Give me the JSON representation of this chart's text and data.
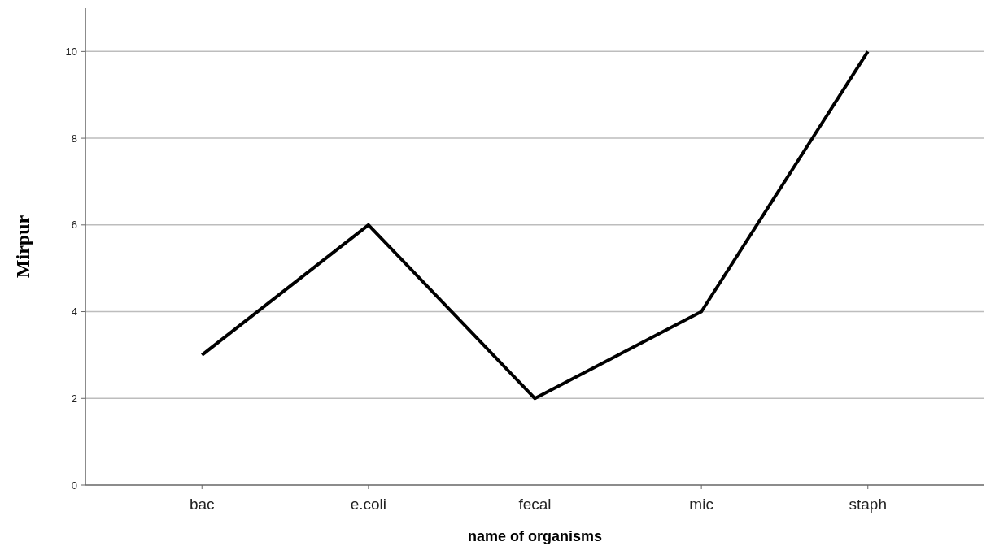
{
  "chart_data": {
    "type": "line",
    "xlabel": "name of organisms",
    "ylabel": "Mirpur",
    "categories": [
      "bac",
      "e.coli",
      "fecal",
      "mic",
      "staph"
    ],
    "series": [
      {
        "color": "#000000",
        "values": [
          3,
          6,
          2,
          4,
          10
        ]
      }
    ],
    "ylim": [
      0,
      11
    ],
    "yticks": [
      0,
      2,
      4,
      6,
      8,
      10
    ],
    "grid": "y",
    "marker": "none",
    "line_style": "solid"
  }
}
